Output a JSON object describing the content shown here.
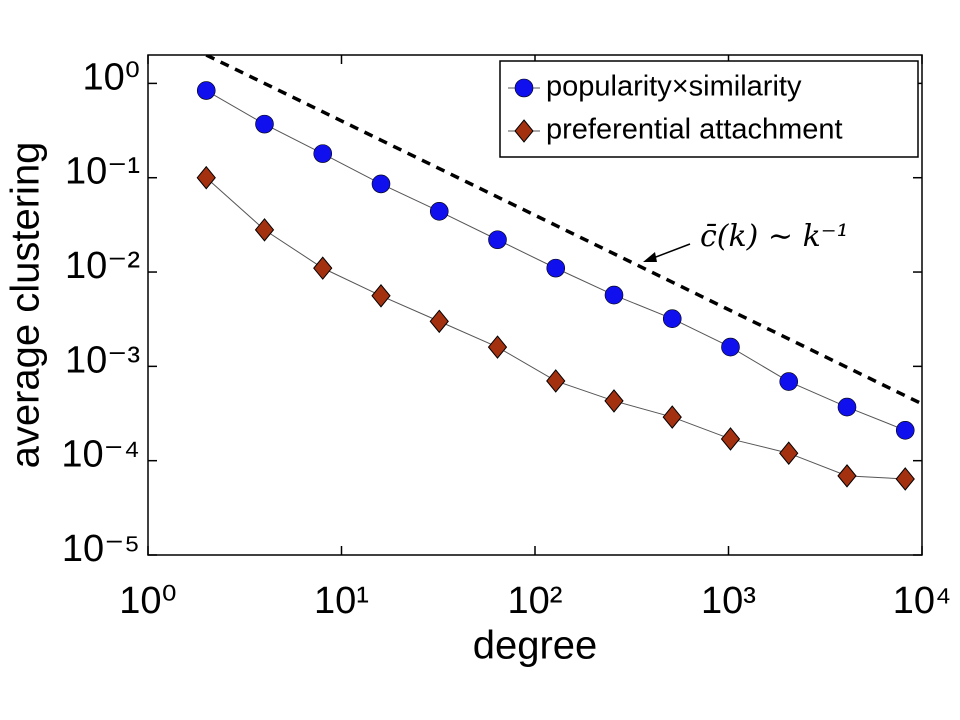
{
  "chart_data": {
    "type": "line",
    "x_label": "degree",
    "y_label": "average clustering",
    "x_log": true,
    "y_log": true,
    "grid": false,
    "legend": "upper right",
    "xlim": [
      1,
      10000
    ],
    "ylim": [
      1e-05,
      2
    ],
    "xticks": [
      {
        "value": 1,
        "label": "10⁰"
      },
      {
        "value": 10,
        "label": "10¹"
      },
      {
        "value": 100,
        "label": "10²"
      },
      {
        "value": 1000,
        "label": "10³"
      },
      {
        "value": 10000,
        "label": "10⁴"
      }
    ],
    "yticks": [
      {
        "value": 1e-05,
        "label": "10⁻⁵"
      },
      {
        "value": 0.0001,
        "label": "10⁻⁴"
      },
      {
        "value": 0.001,
        "label": "10⁻³"
      },
      {
        "value": 0.01,
        "label": "10⁻²"
      },
      {
        "value": 0.1,
        "label": "10⁻¹"
      },
      {
        "value": 1,
        "label": "10⁰"
      }
    ],
    "x": [
      2,
      4,
      8,
      16,
      32,
      64,
      128,
      256,
      512,
      1024,
      2048,
      4096,
      8192
    ],
    "series": [
      {
        "name": "popularity×similarity",
        "color": "#1010ee",
        "marker": "circle",
        "values": [
          0.84,
          0.37,
          0.18,
          0.086,
          0.044,
          0.022,
          0.011,
          0.0057,
          0.0032,
          0.0016,
          0.00069,
          0.00037,
          0.00021
        ]
      },
      {
        "name": "preferential attachment",
        "color": "#a3300f",
        "marker": "diamond",
        "values": [
          0.1,
          0.028,
          0.011,
          0.0056,
          0.003,
          0.0016,
          0.0007,
          0.00043,
          0.00029,
          0.00017,
          0.00012,
          6.9e-05,
          6.4e-05
        ]
      }
    ],
    "reference_line": {
      "x": [
        2,
        10000
      ],
      "values": [
        2,
        0.0004
      ],
      "annotation": "c̄(k) ∼ k⁻¹"
    }
  }
}
